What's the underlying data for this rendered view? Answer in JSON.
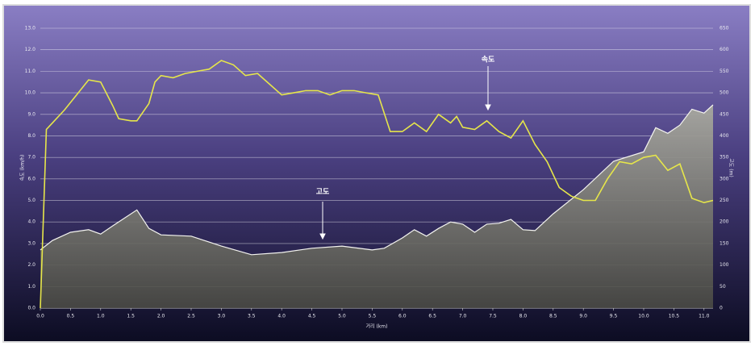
{
  "chart_data": {
    "type": "line",
    "ylabel": "속도 (km/h)",
    "y2label": "고도 (m)",
    "xlabel": "거리 (km)",
    "annotations": [
      "속도",
      "고도"
    ],
    "xlim": [
      0,
      11.15
    ],
    "xticks": [
      {
        "value": 0,
        "label": "0.0"
      },
      0.5,
      {
        "value": 1,
        "label": "1.0"
      },
      1.5,
      {
        "value": 2,
        "label": "2.0"
      },
      2.5,
      {
        "value": 3,
        "label": "3.0"
      },
      3.5,
      {
        "value": 4,
        "label": "4.0"
      },
      4.5,
      {
        "value": 5,
        "label": "5.0"
      },
      5.5,
      {
        "value": 6,
        "label": "6.0"
      },
      6.5,
      {
        "value": 7,
        "label": "7.0"
      },
      7.5,
      {
        "value": 8,
        "label": "8.0"
      },
      8.5,
      {
        "value": 9,
        "label": "9.0"
      },
      9.5,
      {
        "value": 10,
        "label": "10.0"
      },
      10.5,
      {
        "value": 11,
        "label": "11.0"
      }
    ],
    "ylim": [
      0,
      13
    ],
    "yticks": [
      {
        "value": 0,
        "label": "0.0"
      },
      {
        "value": 1,
        "label": "1.0"
      },
      {
        "value": 2,
        "label": "2.0"
      },
      {
        "value": 3,
        "label": "3.0"
      },
      {
        "value": 4,
        "label": "4.0"
      },
      {
        "value": 5,
        "label": "5.0"
      },
      {
        "value": 6,
        "label": "6.0"
      },
      {
        "value": 7,
        "label": "7.0"
      },
      {
        "value": 8,
        "label": "8.0"
      },
      {
        "value": 9,
        "label": "9.0"
      },
      {
        "value": 10,
        "label": "10.0"
      },
      {
        "value": 11,
        "label": "11.0"
      },
      {
        "value": 12,
        "label": "12.0"
      },
      {
        "value": 13,
        "label": "13.0"
      }
    ],
    "y2lim": [
      0,
      650
    ],
    "y2ticks": [
      0,
      50,
      100,
      150,
      200,
      250,
      300,
      350,
      400,
      450,
      500,
      550,
      600,
      650
    ],
    "grid": true,
    "series": [
      {
        "name": "고도",
        "kind": "area",
        "axis": "y2",
        "color": "#8c8c84",
        "x": [
          0,
          0.2,
          0.5,
          0.8,
          1.0,
          1.2,
          1.6,
          1.8,
          2.0,
          2.5,
          3.0,
          3.5,
          4.0,
          4.5,
          5.0,
          5.5,
          5.7,
          6.0,
          6.2,
          6.4,
          6.6,
          6.8,
          7.0,
          7.2,
          7.4,
          7.6,
          7.8,
          8.0,
          8.2,
          8.5,
          9.0,
          9.5,
          10.0,
          10.2,
          10.4,
          10.6,
          10.8,
          11.0,
          11.15
        ],
        "values": [
          135,
          157,
          176,
          182,
          172,
          191,
          228,
          185,
          170,
          167,
          144,
          124,
          129,
          139,
          144,
          135,
          139,
          163,
          182,
          167,
          185,
          200,
          195,
          176,
          195,
          197,
          206,
          182,
          180,
          219,
          275,
          341,
          363,
          419,
          406,
          425,
          462,
          453,
          472
        ]
      },
      {
        "name": "속도",
        "kind": "line",
        "color": "#e6e64a",
        "x": [
          0,
          0.1,
          0.2,
          0.4,
          0.6,
          0.8,
          1.0,
          1.2,
          1.3,
          1.5,
          1.6,
          1.8,
          1.9,
          2.0,
          2.2,
          2.4,
          2.6,
          2.8,
          3.0,
          3.2,
          3.4,
          3.6,
          3.8,
          4.0,
          4.2,
          4.4,
          4.6,
          4.8,
          5.0,
          5.2,
          5.4,
          5.6,
          5.8,
          6.0,
          6.2,
          6.4,
          6.6,
          6.8,
          6.9,
          7.0,
          7.2,
          7.4,
          7.6,
          7.8,
          8.0,
          8.2,
          8.4,
          8.6,
          8.8,
          9.0,
          9.2,
          9.4,
          9.6,
          9.8,
          10.0,
          10.2,
          10.4,
          10.6,
          10.8,
          11.0,
          11.15
        ],
        "values": [
          0,
          8.3,
          8.6,
          9.2,
          9.9,
          10.6,
          10.5,
          9.4,
          8.8,
          8.7,
          8.7,
          9.5,
          10.5,
          10.8,
          10.7,
          10.9,
          11.0,
          11.1,
          11.5,
          11.3,
          10.8,
          10.9,
          10.4,
          9.9,
          10.0,
          10.1,
          10.1,
          9.9,
          10.1,
          10.1,
          10.0,
          9.9,
          8.2,
          8.2,
          8.6,
          8.2,
          9.0,
          8.6,
          8.9,
          8.4,
          8.3,
          8.7,
          8.2,
          7.9,
          8.7,
          7.6,
          6.8,
          5.6,
          5.2,
          5.0,
          5.0,
          6.0,
          6.8,
          6.7,
          7.0,
          7.1,
          6.4,
          6.7,
          5.1,
          4.9,
          5.0
        ]
      }
    ]
  }
}
